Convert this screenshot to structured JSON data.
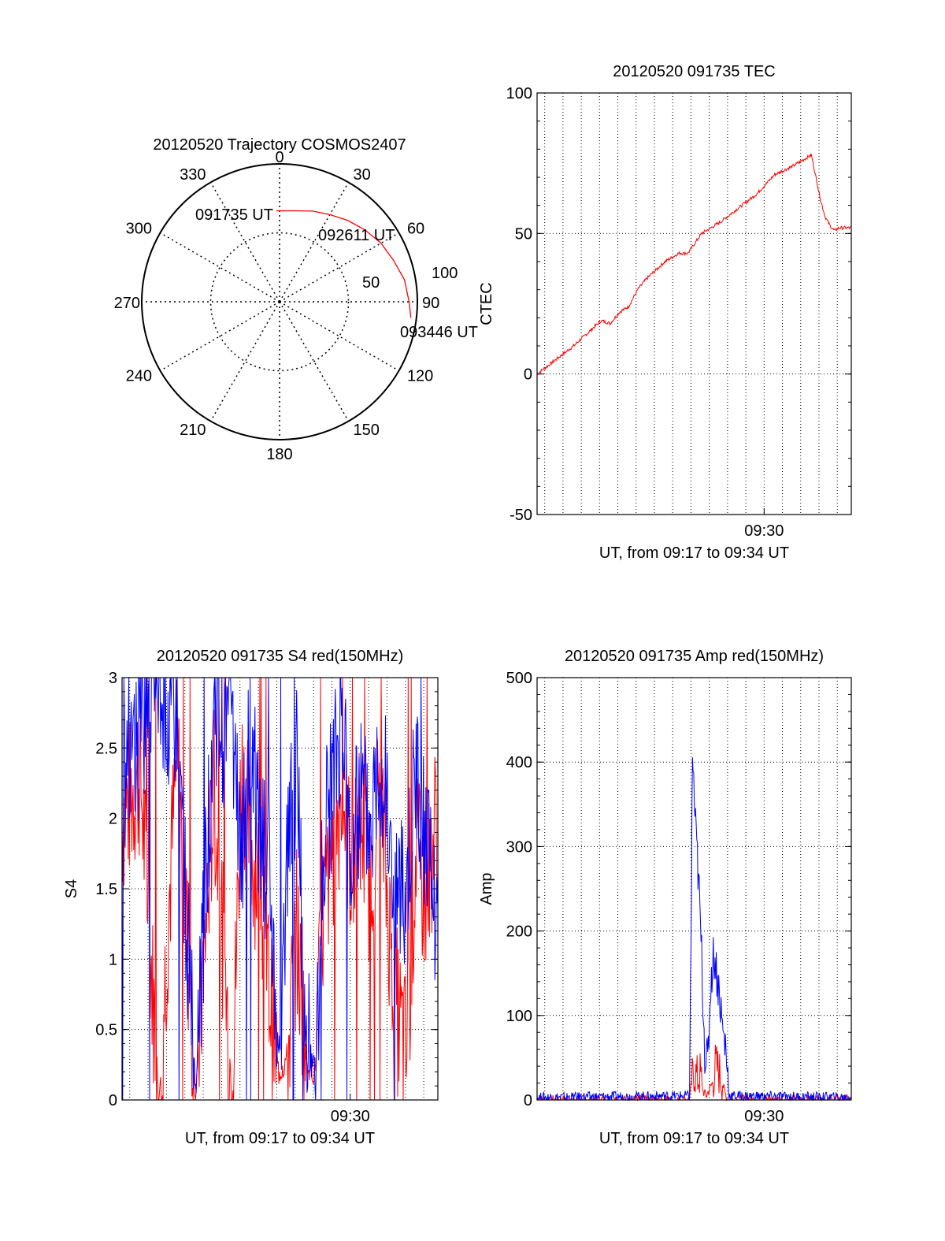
{
  "colors": {
    "red": "#ff0000",
    "blue": "#0000ff",
    "axis": "#000000",
    "grid": "#000000"
  },
  "chart_data": [
    {
      "id": "trajectory",
      "type": "polar",
      "title": "20120520 Trajectory COSMOS2407",
      "angle_labels": [
        "0",
        "30",
        "60",
        "90",
        "120",
        "150",
        "180",
        "210",
        "240",
        "270",
        "300",
        "330"
      ],
      "radius_labels": [
        "50",
        "100"
      ],
      "rlim": [
        0,
        100
      ],
      "grid": true,
      "series": [
        {
          "color": "#ff0000",
          "points": [
            {
              "az": 358,
              "zen": 66
            },
            {
              "az": 10,
              "zen": 67
            },
            {
              "az": 20,
              "zen": 70
            },
            {
              "az": 30,
              "zen": 73
            },
            {
              "az": 40,
              "zen": 77
            },
            {
              "az": 50,
              "zen": 81
            },
            {
              "az": 60,
              "zen": 85
            },
            {
              "az": 70,
              "zen": 88
            },
            {
              "az": 80,
              "zen": 92
            },
            {
              "az": 90,
              "zen": 94
            },
            {
              "az": 97,
              "zen": 96
            }
          ]
        }
      ],
      "annotations": [
        "091735 UT",
        "092611 UT",
        "093446 UT"
      ]
    },
    {
      "id": "tec",
      "type": "line",
      "title": "20120520 091735 TEC",
      "xlabel": "UT, from 09:17 to 09:34 UT",
      "ylabel": "CTEC",
      "xlim": [
        "09:17:35",
        "09:34:46"
      ],
      "ylim": [
        -50,
        100
      ],
      "yticks": [
        "100",
        "50",
        "0",
        "-50"
      ],
      "xticks": [
        "09:30"
      ],
      "grid": true,
      "series": [
        {
          "color": "#ff0000",
          "x": [
            "09:17:35",
            "09:18:35",
            "09:19:35",
            "09:20:35",
            "09:21:05",
            "09:21:35",
            "09:22:05",
            "09:22:35",
            "09:23:05",
            "09:23:35",
            "09:24:35",
            "09:25:20",
            "09:25:50",
            "09:26:35",
            "09:27:35",
            "09:28:35",
            "09:29:35",
            "09:30:35",
            "09:31:35",
            "09:32:35",
            "09:32:50",
            "09:33:05",
            "09:33:20",
            "09:33:35",
            "09:33:50",
            "09:34:05",
            "09:34:46"
          ],
          "y": [
            0,
            5,
            10,
            16,
            19,
            18,
            22,
            24,
            30,
            34,
            40,
            43,
            43,
            50,
            54,
            59,
            64,
            71,
            74,
            78,
            70,
            62,
            56,
            53,
            51,
            52,
            52
          ]
        }
      ]
    },
    {
      "id": "s4",
      "type": "line",
      "title": "20120520 091735 S4 red(150MHz)",
      "xlabel": "UT, from 09:17 to 09:34 UT",
      "ylabel": "S4",
      "xlim": [
        "09:17:35",
        "09:34:46"
      ],
      "ylim": [
        0,
        3
      ],
      "yticks": [
        "3",
        "2.5",
        "2",
        "1.5",
        "1",
        "0.5",
        "0"
      ],
      "xticks": [
        "09:30"
      ],
      "grid": true,
      "series": [
        {
          "color": "#ff0000",
          "x": [
            "09:17:35",
            "09:18:35",
            "09:19:35",
            "09:20:35",
            "09:21:35",
            "09:22:35",
            "09:23:35",
            "09:24:05",
            "09:24:35",
            "09:25:05",
            "09:25:35",
            "09:26:05",
            "09:26:35",
            "09:27:05",
            "09:27:35",
            "09:28:05",
            "09:28:35",
            "09:29:05",
            "09:29:35",
            "09:30:05",
            "09:30:35",
            "09:31:05",
            "09:31:35",
            "09:32:05",
            "09:32:35",
            "09:33:05",
            "09:33:35",
            "09:34:05",
            "09:34:46"
          ],
          "y": [
            2.0,
            2.3,
            0.0,
            2.5,
            0.0,
            2.2,
            0.0,
            2.4,
            1.8,
            1.5,
            0.8,
            0.2,
            0.3,
            1.2,
            0.3,
            0.2,
            1.4,
            1.8,
            2.2,
            1.6,
            2.0,
            1.5,
            2.3,
            1.3,
            0.6,
            0.3,
            1.8,
            1.4,
            2.1
          ]
        },
        {
          "color": "#0000ff",
          "x": [
            "09:17:35",
            "09:18:35",
            "09:19:35",
            "09:20:35",
            "09:21:35",
            "09:22:35",
            "09:23:35",
            "09:24:05",
            "09:24:35",
            "09:25:05",
            "09:25:35",
            "09:26:05",
            "09:26:35",
            "09:27:05",
            "09:27:35",
            "09:28:05",
            "09:28:35",
            "09:29:05",
            "09:29:35",
            "09:30:05",
            "09:30:35",
            "09:31:05",
            "09:31:35",
            "09:32:05",
            "09:32:35",
            "09:33:05",
            "09:33:35",
            "09:34:05",
            "09:34:46"
          ],
          "y": [
            2.2,
            2.6,
            3.0,
            2.7,
            0.0,
            2.8,
            2.5,
            1.7,
            2.6,
            1.8,
            1.6,
            0.3,
            1.8,
            2.4,
            0.4,
            0.2,
            1.9,
            2.2,
            2.8,
            1.7,
            2.3,
            2.0,
            2.6,
            1.9,
            1.4,
            1.5,
            2.3,
            1.9,
            1.0
          ]
        }
      ]
    },
    {
      "id": "amp",
      "type": "line",
      "title": "20120520 091735 Amp red(150MHz)",
      "xlabel": "UT, from 09:17 to 09:34 UT",
      "ylabel": "Amp",
      "xlim": [
        "09:17:35",
        "09:34:46"
      ],
      "ylim": [
        0,
        500
      ],
      "yticks": [
        "500",
        "400",
        "300",
        "200",
        "100",
        "0"
      ],
      "xticks": [
        "09:30"
      ],
      "grid": true,
      "series": [
        {
          "color": "#ff0000",
          "x": [
            "09:17:35",
            "09:25:55",
            "09:26:00",
            "09:26:10",
            "09:26:20",
            "09:26:30",
            "09:26:40",
            "09:26:50",
            "09:27:00",
            "09:27:10",
            "09:27:20",
            "09:27:30",
            "09:27:40",
            "09:27:50",
            "09:28:00",
            "09:34:46"
          ],
          "y": [
            0,
            0,
            15,
            35,
            25,
            30,
            10,
            5,
            12,
            20,
            40,
            35,
            25,
            10,
            0,
            0
          ]
        },
        {
          "color": "#0000ff",
          "x": [
            "09:17:35",
            "09:25:55",
            "09:26:00",
            "09:26:05",
            "09:26:15",
            "09:26:25",
            "09:26:35",
            "09:26:45",
            "09:26:55",
            "09:27:05",
            "09:27:15",
            "09:27:25",
            "09:27:35",
            "09:27:45",
            "09:27:55",
            "09:28:05",
            "09:34:46"
          ],
          "y": [
            3,
            5,
            180,
            410,
            320,
            260,
            170,
            60,
            40,
            140,
            175,
            150,
            120,
            80,
            60,
            5,
            3
          ]
        }
      ]
    }
  ]
}
